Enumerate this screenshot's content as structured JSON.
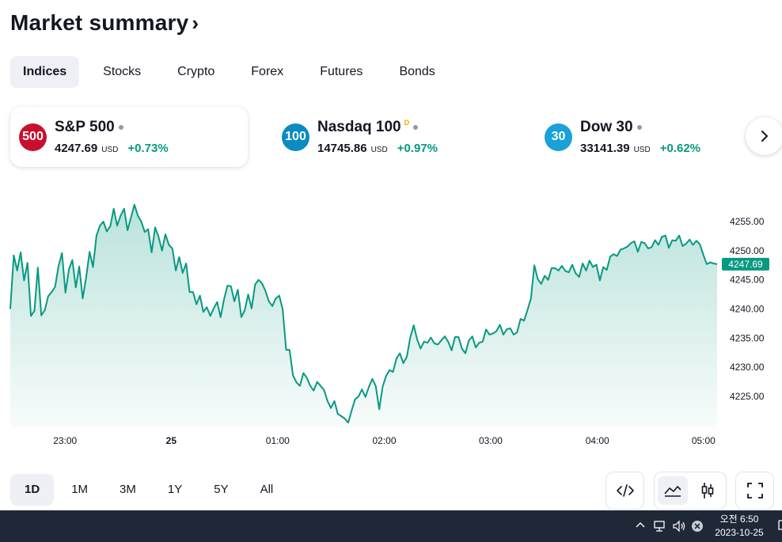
{
  "header": {
    "title": "Market summary",
    "chevron": "›"
  },
  "tabs": [
    {
      "label": "Indices",
      "active": true
    },
    {
      "label": "Stocks",
      "active": false
    },
    {
      "label": "Crypto",
      "active": false
    },
    {
      "label": "Forex",
      "active": false
    },
    {
      "label": "Futures",
      "active": false
    },
    {
      "label": "Bonds",
      "active": false
    }
  ],
  "cards": [
    {
      "badge": "500",
      "badge_color": "#c8102e",
      "name": "S&P 500",
      "delayed": "",
      "price": "4247.69",
      "currency": "USD",
      "change": "+0.73%"
    },
    {
      "badge": "100",
      "badge_color": "#0b8bc1",
      "name": "Nasdaq 100",
      "delayed": "D",
      "price": "14745.86",
      "currency": "USD",
      "change": "+0.97%"
    },
    {
      "badge": "30",
      "badge_color": "#1aa1d8",
      "name": "Dow 30",
      "delayed": "",
      "price": "33141.39",
      "currency": "USD",
      "change": "+0.62%"
    }
  ],
  "chart_data": {
    "type": "area",
    "series": [
      {
        "values": [
          4240.0,
          4249.2,
          4246.6,
          4249.7,
          4244.9,
          4247.9,
          4238.8,
          4239.7,
          4247.1,
          4238.9,
          4239.8,
          4242.2,
          4242.9,
          4243.8,
          4247.4,
          4249.6,
          4242.8,
          4246.8,
          4248.4,
          4243.7,
          4247.3,
          4241.8,
          4245.4,
          4249.8,
          4247.2,
          4252.6,
          4254.3,
          4255.0,
          4253.3,
          4254.2,
          4257.2,
          4254.3,
          4256.0,
          4257.2,
          4253.5,
          4255.7,
          4257.9,
          4256.0,
          4255.0,
          4253.2,
          4253.7,
          4249.7,
          4254.0,
          4252.4,
          4250.0,
          4252.8,
          4251.0,
          4250.4,
          4246.6,
          4248.9,
          4246.2,
          4247.8,
          4242.9,
          4242.9,
          4240.8,
          4242.3,
          4239.5,
          4240.3,
          4238.8,
          4240.1,
          4241.2,
          4238.6,
          4241.7,
          4244.0,
          4243.9,
          4241.3,
          4243.3,
          4238.6,
          4239.8,
          4242.5,
          4240.1,
          4244.2,
          4245.0,
          4244.4,
          4243.1,
          4241.3,
          4240.5,
          4241.8,
          4242.3,
          4240.0,
          4233.0,
          4233.0,
          4228.6,
          4227.4,
          4226.8,
          4229.0,
          4228.2,
          4226.8,
          4226.0,
          4227.5,
          4226.8,
          4226.1,
          4224.2,
          4223.0,
          4224.2,
          4222.0,
          4221.6,
          4221.2,
          4220.5,
          4222.6,
          4224.5,
          4225.0,
          4226.2,
          4224.9,
          4226.6,
          4228.0,
          4226.8,
          4222.8,
          4226.7,
          4228.5,
          4229.5,
          4229.2,
          4231.5,
          4232.4,
          4230.7,
          4231.8,
          4235.1,
          4237.2,
          4234.8,
          4233.2,
          4234.4,
          4234.2,
          4235.1,
          4234.1,
          4233.9,
          4234.6,
          4235.3,
          4234.4,
          4232.9,
          4235.2,
          4235.2,
          4233.2,
          4232.4,
          4234.6,
          4235.3,
          4233.4,
          4234.2,
          4234.4,
          4236.5,
          4235.6,
          4235.8,
          4236.2,
          4237.3,
          4235.6,
          4236.5,
          4236.7,
          4235.6,
          4236.0,
          4238.3,
          4238.0,
          4239.8,
          4241.8,
          4247.5,
          4245.1,
          4244.3,
          4245.7,
          4245.0,
          4247.0,
          4247.0,
          4246.6,
          4247.4,
          4246.5,
          4246.3,
          4247.6,
          4246.1,
          4245.5,
          4247.8,
          4246.6,
          4248.3,
          4247.2,
          4247.6,
          4244.9,
          4247.2,
          4246.7,
          4249.0,
          4249.4,
          4249.1,
          4250.2,
          4250.4,
          4250.7,
          4251.3,
          4251.6,
          4249.8,
          4251.5,
          4251.3,
          4250.4,
          4250.6,
          4251.8,
          4251.0,
          4252.4,
          4252.6,
          4250.5,
          4251.8,
          4251.7,
          4252.6,
          4250.8,
          4251.2,
          4251.9,
          4251.0,
          4251.7,
          4251.1,
          4249.3,
          4247.7,
          4248.0,
          4247.8,
          4247.69
        ]
      }
    ],
    "yticks": [
      "4255.00",
      "4250.00",
      "4245.00",
      "4240.00",
      "4235.00",
      "4230.00",
      "4225.00"
    ],
    "ylim": [
      4220,
      4258
    ],
    "xticks": [
      {
        "label": "23:00",
        "pos": 0.0775
      },
      {
        "label": "25",
        "pos": 0.2277,
        "bold": true
      },
      {
        "label": "01:00",
        "pos": 0.3783
      },
      {
        "label": "02:00",
        "pos": 0.5291
      },
      {
        "label": "03:00",
        "pos": 0.6797
      },
      {
        "label": "04:00",
        "pos": 0.8306
      },
      {
        "label": "05:00",
        "pos": 0.9808
      }
    ],
    "last_price": "4247.69",
    "line_color": "#089981"
  },
  "ranges": [
    {
      "label": "1D",
      "active": true
    },
    {
      "label": "1M",
      "active": false
    },
    {
      "label": "3M",
      "active": false
    },
    {
      "label": "1Y",
      "active": false
    },
    {
      "label": "5Y",
      "active": false
    },
    {
      "label": "All",
      "active": false
    }
  ],
  "toolbar_icons": [
    "embed-code-icon",
    "area-chart-icon",
    "candlestick-icon",
    "fullscreen-icon"
  ],
  "taskbar": {
    "time": "오전 6:50",
    "date": "2023-10-25"
  }
}
